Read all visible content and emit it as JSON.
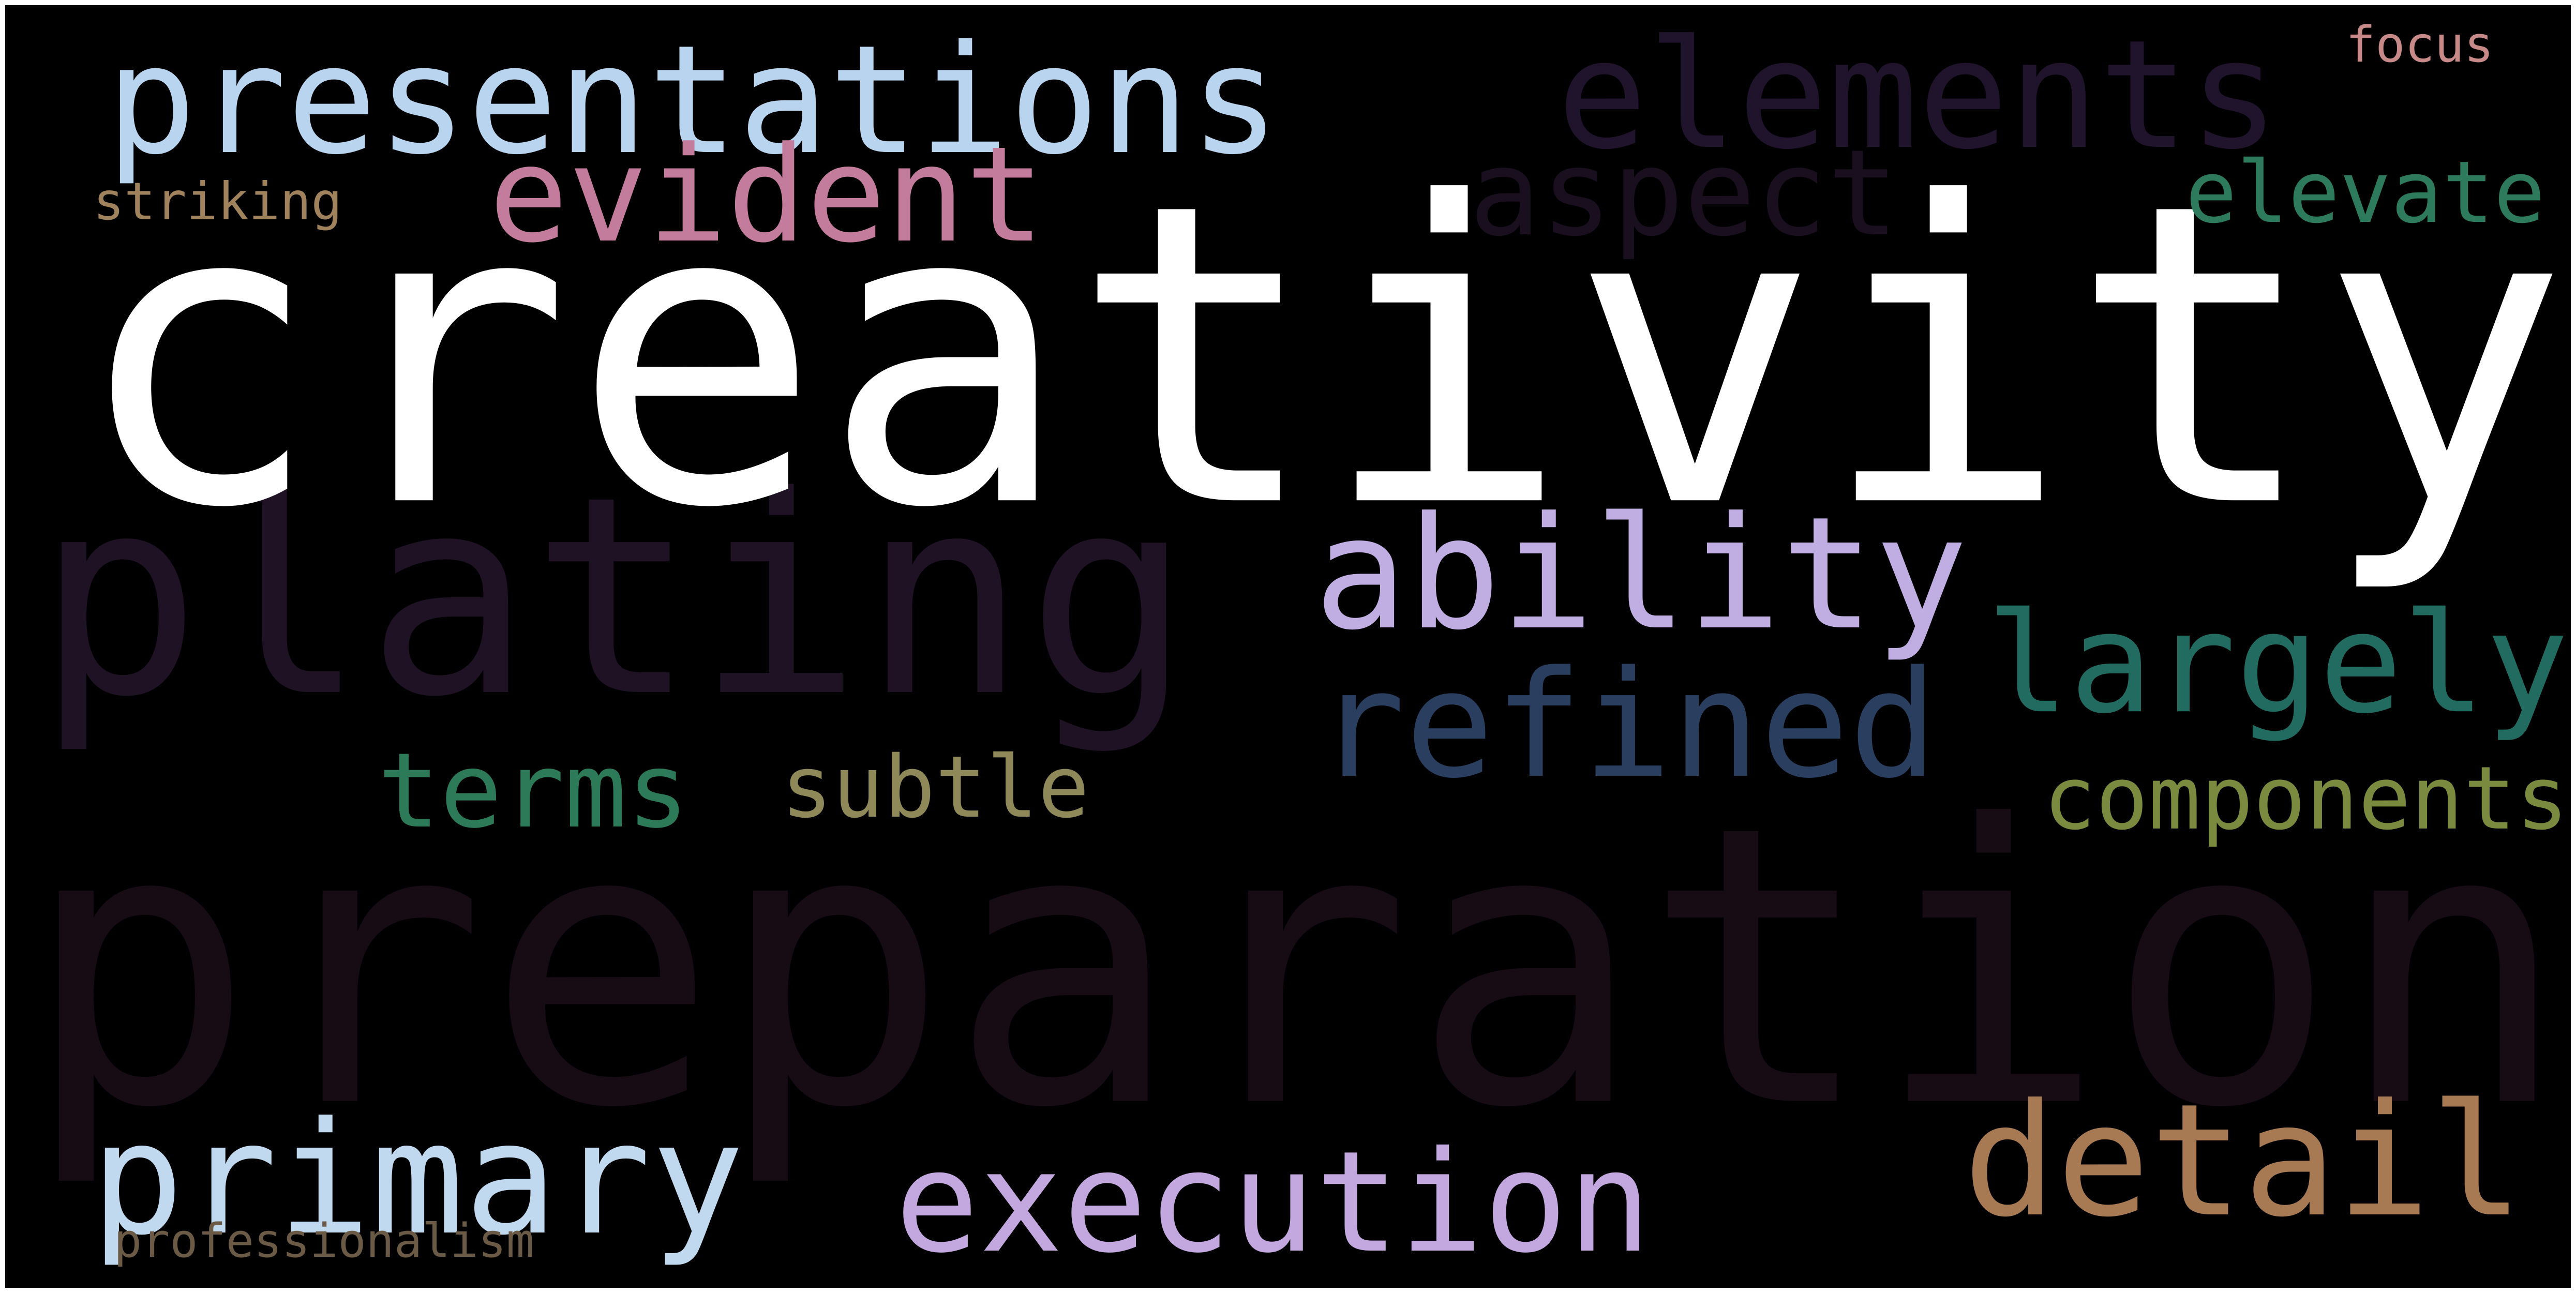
{
  "word_cloud": {
    "background": "#000000",
    "words": {
      "preparation": {
        "text": "preparation",
        "color": "#170b14"
      },
      "plating": {
        "text": "plating",
        "color": "#1e1224"
      },
      "elements": {
        "text": "elements",
        "color": "#20142c"
      },
      "aspect": {
        "text": "aspect",
        "color": "#1a0f1e"
      },
      "creativity": {
        "text": "creativity",
        "color": "#ffffff"
      },
      "presentations": {
        "text": "presentations",
        "color": "#b9d4ef"
      },
      "evident": {
        "text": "evident",
        "color": "#c47c9c"
      },
      "focus": {
        "text": "focus",
        "color": "#c88a89"
      },
      "striking": {
        "text": "striking",
        "color": "#a0825c"
      },
      "elevate": {
        "text": "elevate",
        "color": "#2d7a5c"
      },
      "ability": {
        "text": "ability",
        "color": "#c0aee3"
      },
      "largely": {
        "text": "largely",
        "color": "#226b61"
      },
      "refined": {
        "text": "refined",
        "color": "#2a3f60"
      },
      "terms": {
        "text": "terms",
        "color": "#2d7a58"
      },
      "subtle": {
        "text": "subtle",
        "color": "#8f8858"
      },
      "components": {
        "text": "components",
        "color": "#7a8a3e"
      },
      "detail": {
        "text": "detail",
        "color": "#a77a53"
      },
      "primary": {
        "text": "primary",
        "color": "#c0d9ee"
      },
      "execution": {
        "text": "execution",
        "color": "#c3a8e0"
      },
      "professionalism": {
        "text": "professionalism",
        "color": "#6b5a45"
      }
    }
  }
}
